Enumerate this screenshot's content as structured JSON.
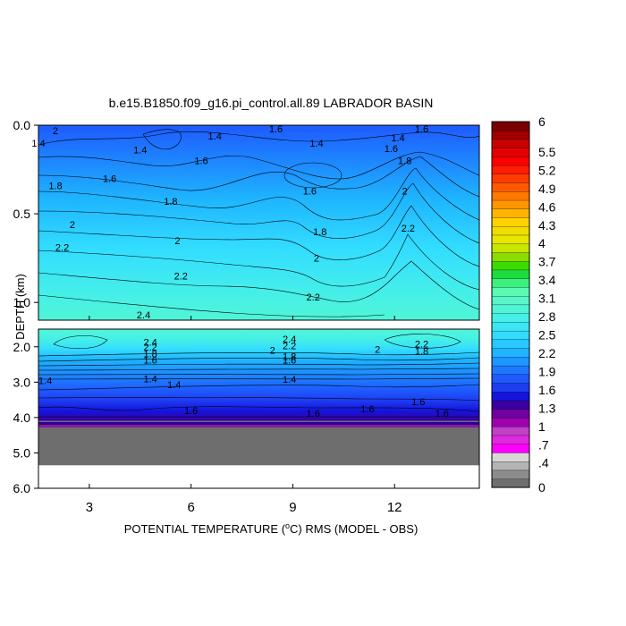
{
  "chart_data": {
    "type": "heatmap",
    "title": "b.e15.B1850.f09_g16.pi_control.all.89 LABRADOR BASIN",
    "xlabel_prefix": "POTENTIAL TEMPERATURE (",
    "xlabel_unit_sup": "o",
    "xlabel_suffix": "C) RMS (MODEL - OBS)",
    "ylabel": "DEPTH (km)",
    "x_ticks": [
      "3",
      "6",
      "9",
      "12"
    ],
    "x_tick_values": [
      3,
      6,
      9,
      12
    ],
    "xlim": [
      1.5,
      14.5
    ],
    "upper_panel": {
      "ylim": [
        0.0,
        1.1
      ],
      "y_ticks": [
        "0.0",
        "0.5",
        "1.0"
      ],
      "y_tick_values": [
        0.0,
        0.5,
        1.0
      ]
    },
    "lower_panel": {
      "ylim": [
        1.5,
        6.0
      ],
      "y_ticks": [
        "2.0",
        "3.0",
        "4.0",
        "5.0",
        "6.0"
      ],
      "y_tick_values": [
        2.0,
        3.0,
        4.0,
        5.0,
        6.0
      ],
      "bottom_depth": 5.35
    },
    "contour_labels_upper": [
      {
        "x": 2.0,
        "y": 0.03,
        "text": "2"
      },
      {
        "x": 6.7,
        "y": 0.06,
        "text": "1.4"
      },
      {
        "x": 8.5,
        "y": 0.02,
        "text": "1.6"
      },
      {
        "x": 9.7,
        "y": 0.1,
        "text": "1.4"
      },
      {
        "x": 12.8,
        "y": 0.02,
        "text": "1.6"
      },
      {
        "x": 12.1,
        "y": 0.07,
        "text": "1.4"
      },
      {
        "x": 1.5,
        "y": 0.1,
        "text": "1.4"
      },
      {
        "x": 4.5,
        "y": 0.14,
        "text": "1.4"
      },
      {
        "x": 6.3,
        "y": 0.2,
        "text": "1.6"
      },
      {
        "x": 2.0,
        "y": 0.34,
        "text": "1.8"
      },
      {
        "x": 3.6,
        "y": 0.3,
        "text": "1.6"
      },
      {
        "x": 5.4,
        "y": 0.43,
        "text": "1.8"
      },
      {
        "x": 9.5,
        "y": 0.37,
        "text": "1.6"
      },
      {
        "x": 11.9,
        "y": 0.13,
        "text": "1.6"
      },
      {
        "x": 12.3,
        "y": 0.2,
        "text": "1.8"
      },
      {
        "x": 12.3,
        "y": 0.37,
        "text": "2"
      },
      {
        "x": 2.5,
        "y": 0.56,
        "text": "2"
      },
      {
        "x": 9.8,
        "y": 0.6,
        "text": "1.8"
      },
      {
        "x": 12.4,
        "y": 0.58,
        "text": "2.2"
      },
      {
        "x": 2.2,
        "y": 0.69,
        "text": "2.2"
      },
      {
        "x": 5.6,
        "y": 0.65,
        "text": "2"
      },
      {
        "x": 9.7,
        "y": 0.75,
        "text": "2"
      },
      {
        "x": 5.7,
        "y": 0.85,
        "text": "2.2"
      },
      {
        "x": 9.6,
        "y": 0.97,
        "text": "2.2"
      },
      {
        "x": 4.6,
        "y": 1.07,
        "text": "2.4"
      }
    ],
    "contour_labels_lower": [
      {
        "x": 4.8,
        "y": 1.87,
        "text": "2.4"
      },
      {
        "x": 8.9,
        "y": 1.78,
        "text": "2.4"
      },
      {
        "x": 4.8,
        "y": 2.0,
        "text": "2.2"
      },
      {
        "x": 8.9,
        "y": 1.97,
        "text": "2.2"
      },
      {
        "x": 8.4,
        "y": 2.1,
        "text": "2"
      },
      {
        "x": 11.5,
        "y": 2.07,
        "text": "2"
      },
      {
        "x": 12.8,
        "y": 1.92,
        "text": "2.2"
      },
      {
        "x": 12.8,
        "y": 2.12,
        "text": "1.8"
      },
      {
        "x": 4.8,
        "y": 2.2,
        "text": "1.8"
      },
      {
        "x": 8.9,
        "y": 2.27,
        "text": "1.8"
      },
      {
        "x": 4.8,
        "y": 2.37,
        "text": "1.6"
      },
      {
        "x": 8.9,
        "y": 2.37,
        "text": "1.6"
      },
      {
        "x": 1.7,
        "y": 2.95,
        "text": "1.4"
      },
      {
        "x": 4.8,
        "y": 2.9,
        "text": "1.4"
      },
      {
        "x": 5.5,
        "y": 3.07,
        "text": "1.4"
      },
      {
        "x": 8.9,
        "y": 2.92,
        "text": "1.4"
      },
      {
        "x": 12.7,
        "y": 3.55,
        "text": "1.6"
      },
      {
        "x": 6.0,
        "y": 3.8,
        "text": "1.6"
      },
      {
        "x": 11.2,
        "y": 3.75,
        "text": "1.6"
      },
      {
        "x": 9.6,
        "y": 3.88,
        "text": "1.6"
      },
      {
        "x": 13.4,
        "y": 3.88,
        "text": "1.6"
      }
    ],
    "colorbar": {
      "labels": [
        "6",
        "5.5",
        "5.2",
        "4.9",
        "4.6",
        "4.3",
        "4",
        "3.7",
        "3.4",
        "3.1",
        "2.8",
        "2.5",
        "2.2",
        "1.9",
        "1.6",
        "1.3",
        "1",
        ".7",
        ".4",
        "0"
      ],
      "levels": [
        6,
        5.5,
        5.2,
        4.9,
        4.6,
        4.3,
        4,
        3.7,
        3.4,
        3.1,
        2.8,
        2.5,
        2.2,
        1.9,
        1.6,
        1.3,
        1,
        0.7,
        0.4,
        0
      ],
      "colors_bottom_to_top": [
        "#6e6e6e",
        "#8c8c8c",
        "#b4b4b4",
        "#d8d8d8",
        "#ff00ff",
        "#e028e0",
        "#c040c8",
        "#a000b0",
        "#7000a0",
        "#3c00a0",
        "#1414dc",
        "#1e3cf0",
        "#1e5aff",
        "#1e78ff",
        "#1e96ff",
        "#1eb4ff",
        "#28c8ff",
        "#32dcff",
        "#3ce6f5",
        "#46f0e6",
        "#50f5d7",
        "#5af5c8",
        "#5afab4",
        "#3cf07f",
        "#1edc3c",
        "#3cdc00",
        "#8cdc00",
        "#c8e600",
        "#e6e600",
        "#f0dc00",
        "#ffd200",
        "#ffb400",
        "#ff9600",
        "#ff7800",
        "#ff5a00",
        "#ff3c00",
        "#ff1e00",
        "#ff0000",
        "#e60000",
        "#c80000",
        "#a00000",
        "#780000"
      ]
    },
    "upper_field_colors": [
      "#1e5aff",
      "#1e78ff",
      "#1e96ff",
      "#1eb4ff",
      "#28c8ff",
      "#32dcff",
      "#3ce6f5",
      "#46f0e6",
      "#50f5d7"
    ],
    "lower_field_colors": [
      "#50f5d7",
      "#46f0e6",
      "#32dcff",
      "#1eb4ff",
      "#1e96ff",
      "#1e78ff",
      "#1e5aff",
      "#1e3cf0",
      "#1414dc",
      "#3c00a0",
      "#6e6e6e"
    ]
  }
}
